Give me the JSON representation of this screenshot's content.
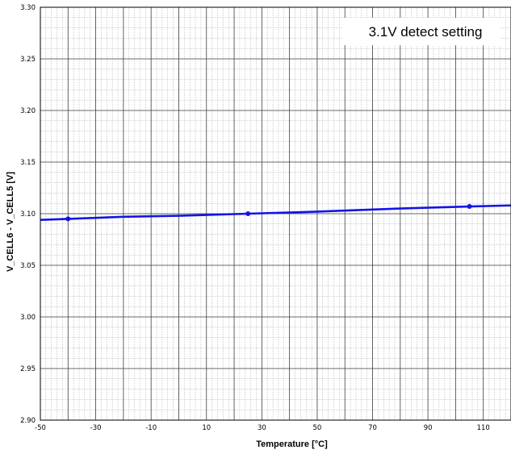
{
  "chart_data": {
    "type": "line",
    "title": "",
    "annotation": "3.1V detect setting",
    "xlabel": "Temperature [°C]",
    "ylabel": "V_CELL6 - V_CELL5 [V]",
    "xlim": [
      -50,
      120
    ],
    "ylim": [
      2.9,
      3.3
    ],
    "x_ticks": [
      -50,
      -30,
      -10,
      10,
      30,
      50,
      70,
      90,
      110
    ],
    "x_tick_labels": [
      "-50",
      "-30",
      "-10",
      "10",
      "30",
      "50",
      "70",
      "90",
      "110"
    ],
    "y_ticks": [
      2.9,
      2.95,
      3.0,
      3.05,
      3.1,
      3.15,
      3.2,
      3.25,
      3.3
    ],
    "y_tick_labels": [
      "2.90",
      "2.95",
      "3.00",
      "3.05",
      "3.10",
      "3.15",
      "3.20",
      "3.25",
      "3.30"
    ],
    "grid": true,
    "line_color": "#1414e6",
    "series": [
      {
        "name": "",
        "x": [
          -50,
          -40,
          -20,
          0,
          25,
          50,
          80,
          105,
          120
        ],
        "y": [
          3.094,
          3.095,
          3.097,
          3.098,
          3.1,
          3.102,
          3.105,
          3.107,
          3.108
        ],
        "markers_x": [
          -40,
          25,
          105
        ],
        "markers_y": [
          3.095,
          3.1,
          3.107
        ]
      }
    ]
  }
}
